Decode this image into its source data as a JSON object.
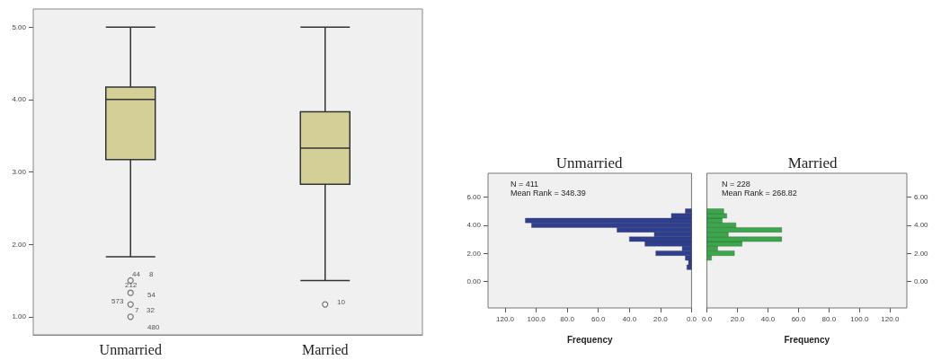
{
  "chart_data": [
    {
      "type": "box",
      "categories": [
        "Unmarried",
        "Married"
      ],
      "color": "#d3cf97",
      "boxes": [
        {
          "low": 1.83,
          "q1": 3.17,
          "median": 4.0,
          "q3": 4.17,
          "high": 5.0,
          "outliers": [
            1.5,
            1.33,
            1.17,
            1.0
          ]
        },
        {
          "low": 1.5,
          "q1": 2.83,
          "median": 3.33,
          "q3": 3.83,
          "high": 5.0,
          "outliers": [
            1.17
          ]
        }
      ],
      "ylim": [
        0.75,
        5.25
      ],
      "yticks": [
        {
          "value": 1,
          "label": "1.00"
        },
        {
          "value": 2,
          "label": "2.00"
        },
        {
          "value": 3,
          "label": "3.00"
        },
        {
          "value": 4,
          "label": "4.00"
        },
        {
          "value": 5,
          "label": "5.00"
        }
      ],
      "annotations": [
        "44",
        "8",
        "212",
        "54",
        "573",
        "7",
        "32",
        "480",
        "10"
      ]
    },
    {
      "type": "histogram",
      "orientation": "horizontal",
      "title": "Unmarried",
      "xlabel": "Frequency",
      "bins": [
        0.83,
        1.17,
        1.5,
        1.83,
        2.17,
        2.5,
        2.83,
        3.17,
        3.5,
        3.83,
        4.17,
        4.5,
        4.83,
        5.17
      ],
      "color": "#2e3f91",
      "values": [
        3,
        2,
        4,
        23,
        6,
        30,
        40,
        24,
        48,
        103,
        107,
        13,
        4
      ],
      "xlim": [
        131,
        0
      ],
      "xticks": [
        {
          "value": 120,
          "label": "120.0"
        },
        {
          "value": 100,
          "label": "100.0"
        },
        {
          "value": 80,
          "label": "80.0"
        },
        {
          "value": 60,
          "label": "60.0"
        },
        {
          "value": 40,
          "label": "40.0"
        },
        {
          "value": 20,
          "label": "20.0"
        },
        {
          "value": 0,
          "label": "0.0"
        }
      ],
      "ylim": [
        -1.9,
        7.7
      ],
      "yticks": [
        {
          "value": 0,
          "label": "0.00"
        },
        {
          "value": 2,
          "label": "2.00"
        },
        {
          "value": 4,
          "label": "4.00"
        },
        {
          "value": 6,
          "label": "6.00"
        }
      ],
      "annotations": [
        "N = 411",
        "Mean Rank = 348.39"
      ]
    },
    {
      "type": "histogram",
      "orientation": "horizontal",
      "title": "Married",
      "xlabel": "Frequency",
      "bins": [
        0.83,
        1.17,
        1.5,
        1.83,
        2.17,
        2.5,
        2.83,
        3.17,
        3.5,
        3.83,
        4.17,
        4.5,
        4.83,
        5.17
      ],
      "color": "#3aa84a",
      "values": [
        0,
        0,
        3,
        18,
        7,
        23,
        49,
        14,
        49,
        19,
        10,
        13,
        11
      ],
      "xlim": [
        0,
        131
      ],
      "xticks": [
        {
          "value": 0,
          "label": "0.0"
        },
        {
          "value": 20,
          "label": "20.0"
        },
        {
          "value": 40,
          "label": "40.0"
        },
        {
          "value": 60,
          "label": "60.0"
        },
        {
          "value": 80,
          "label": "80.0"
        },
        {
          "value": 100,
          "label": "100.0"
        },
        {
          "value": 120,
          "label": "120.0"
        }
      ],
      "ylim": [
        -1.9,
        7.7
      ],
      "yticks": [
        {
          "value": 0,
          "label": "0.00"
        },
        {
          "value": 2,
          "label": "2.00"
        },
        {
          "value": 4,
          "label": "4.00"
        },
        {
          "value": 6,
          "label": "6.00"
        }
      ],
      "annotations": [
        "N = 228",
        "Mean Rank = 268.82"
      ]
    }
  ]
}
